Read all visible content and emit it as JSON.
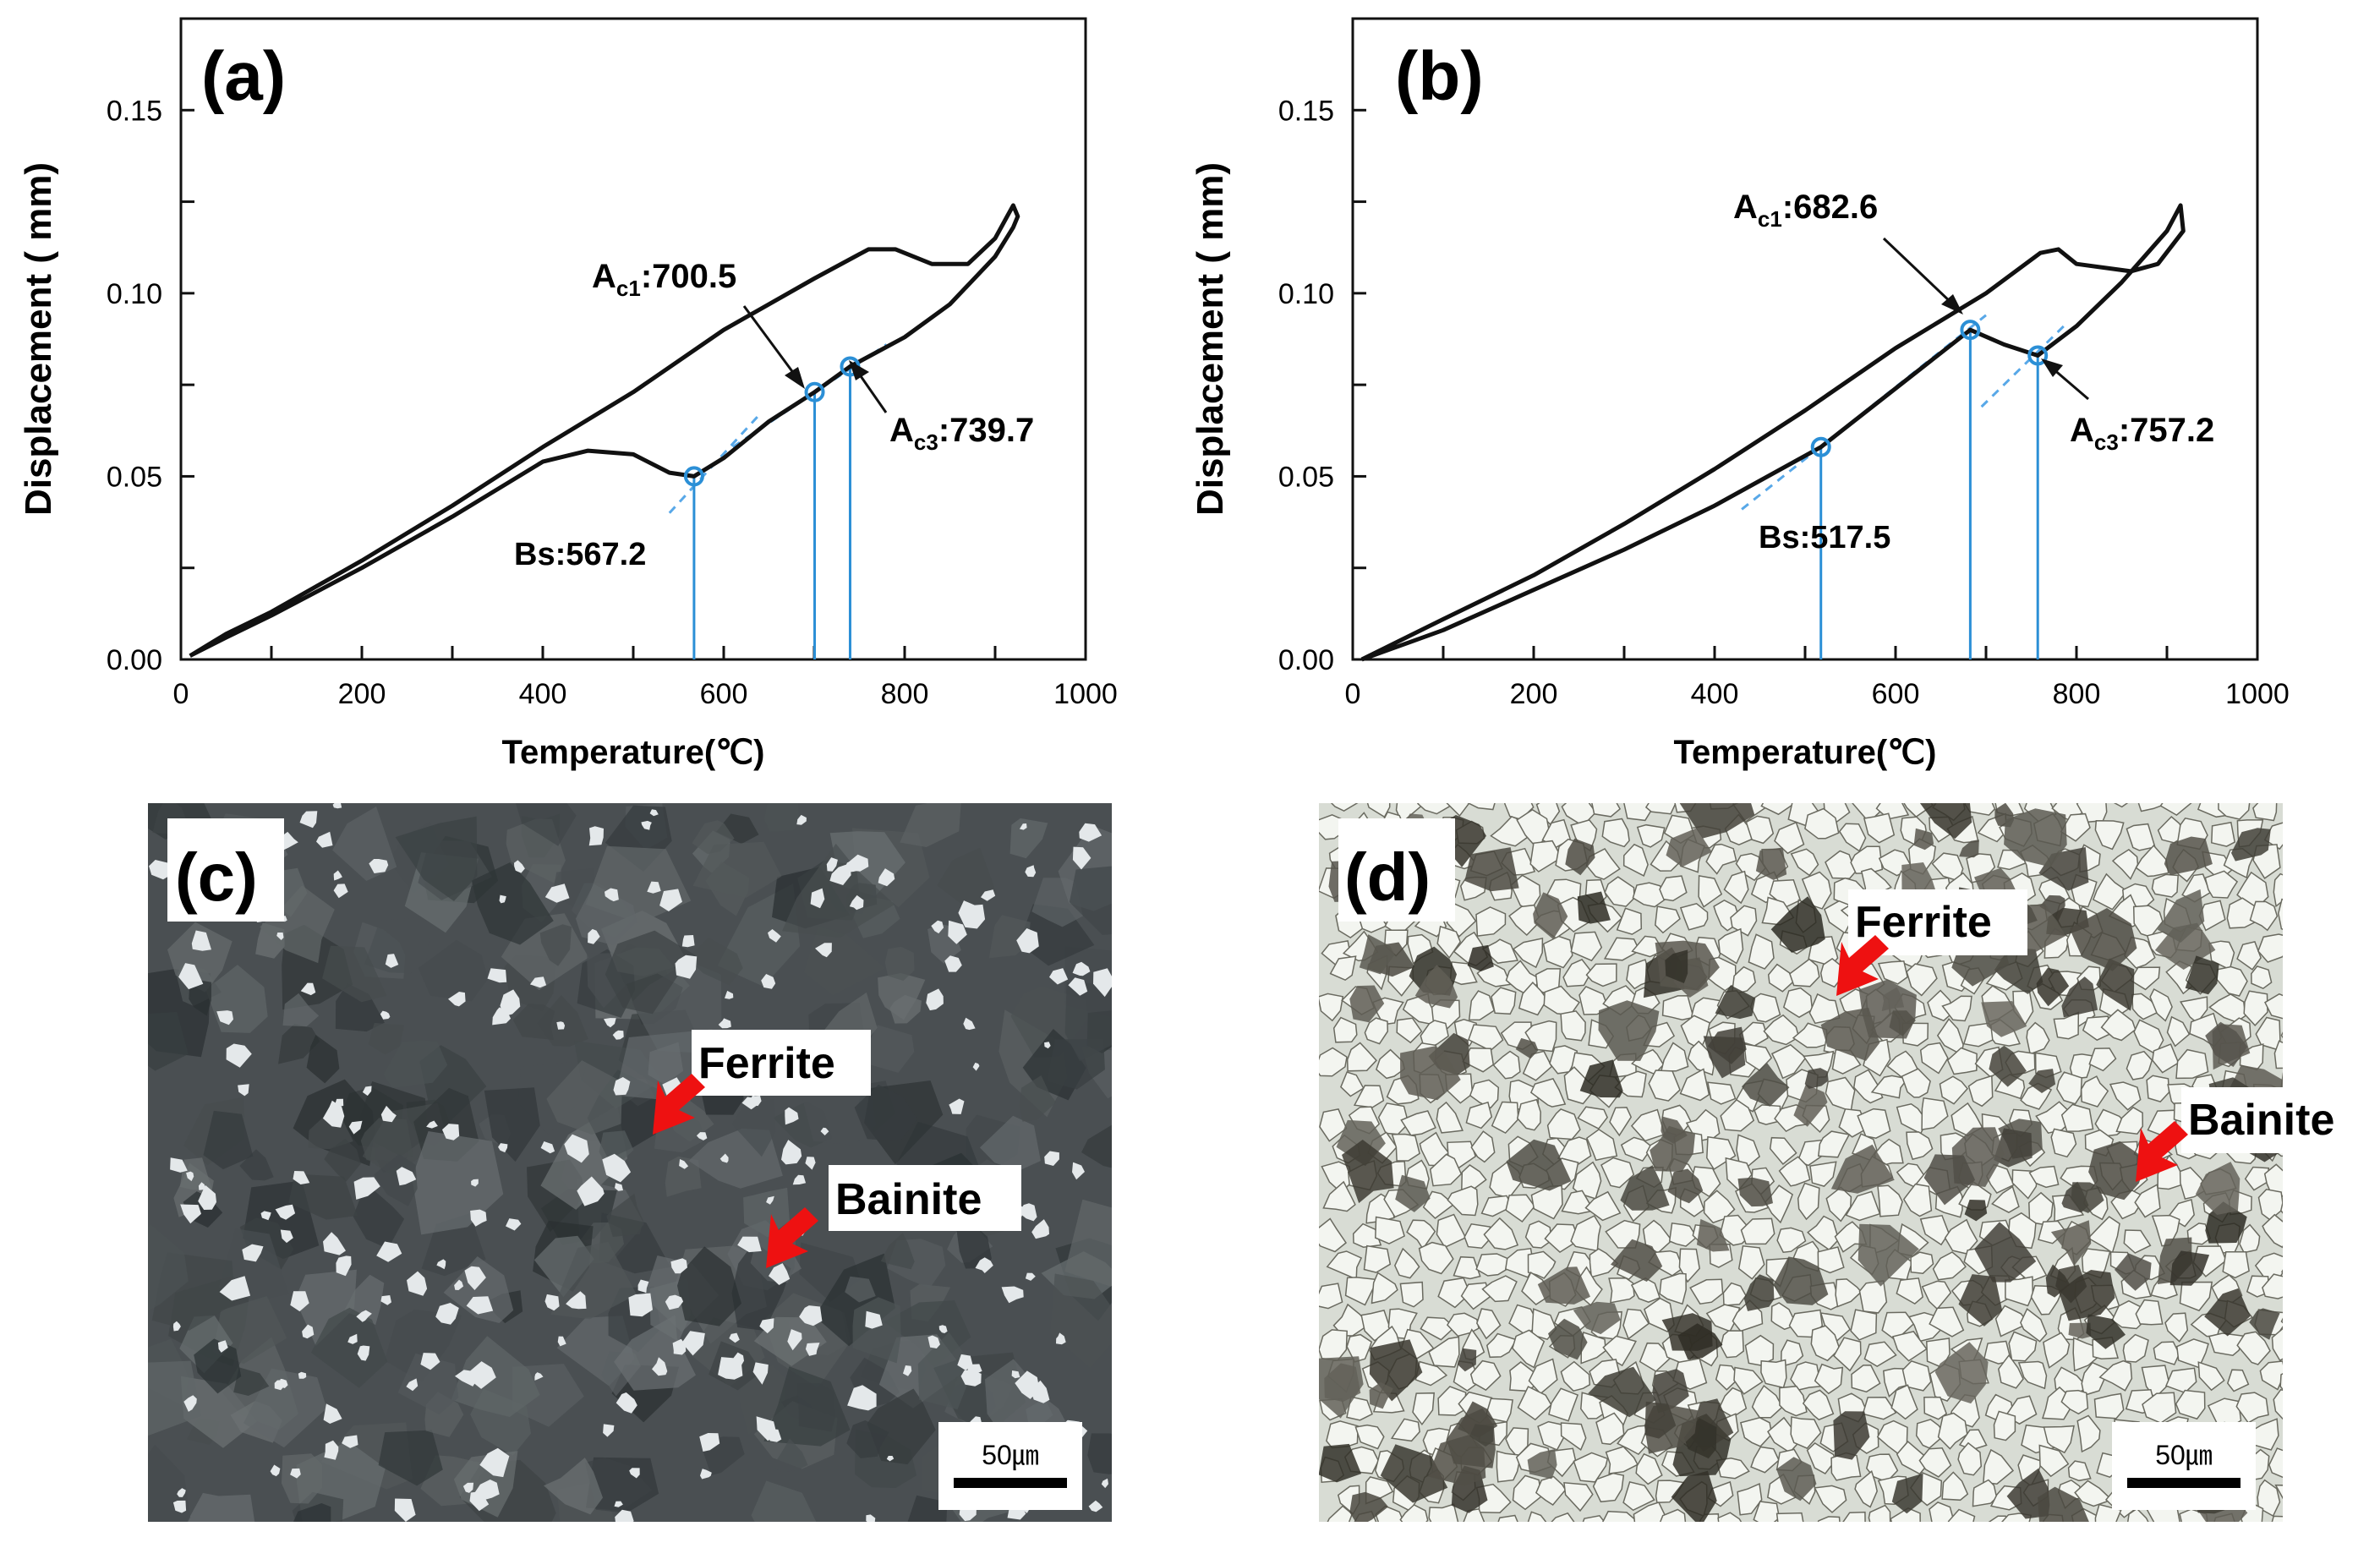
{
  "chart_data": [
    {
      "panel": "(a)",
      "type": "line",
      "xlabel": "Temperature(℃)",
      "ylabel": "Displacement ( mm)",
      "xlim": [
        0,
        1000
      ],
      "ylim": [
        0.0,
        0.175
      ],
      "xticks": [
        "0",
        "200",
        "400",
        "600",
        "800",
        "1000"
      ],
      "yticks": [
        "0.00",
        "0.05",
        "0.10",
        "0.15"
      ],
      "grid": false,
      "series": [
        {
          "values": [
            [
              10,
              0.001
            ],
            [
              50,
              0.006
            ],
            [
              100,
              0.012
            ],
            [
              200,
              0.025
            ],
            [
              300,
              0.039
            ],
            [
              400,
              0.054
            ],
            [
              450,
              0.057
            ],
            [
              500,
              0.056
            ],
            [
              540,
              0.051
            ],
            [
              567.2,
              0.05
            ],
            [
              600,
              0.055
            ],
            [
              650,
              0.065
            ],
            [
              700.5,
              0.073
            ],
            [
              739.7,
              0.08
            ],
            [
              800,
              0.088
            ],
            [
              850,
              0.097
            ],
            [
              900,
              0.11
            ],
            [
              920,
              0.118
            ],
            [
              925,
              0.121
            ],
            [
              920,
              0.124
            ],
            [
              900,
              0.115
            ],
            [
              870,
              0.108
            ],
            [
              830,
              0.108
            ],
            [
              790,
              0.112
            ],
            [
              760,
              0.112
            ],
            [
              700,
              0.104
            ],
            [
              600,
              0.09
            ],
            [
              500,
              0.073
            ],
            [
              400,
              0.058
            ],
            [
              300,
              0.042
            ],
            [
              200,
              0.027
            ],
            [
              100,
              0.013
            ],
            [
              50,
              0.007
            ],
            [
              10,
              0.001
            ]
          ]
        }
      ],
      "markers": [
        {
          "label": "Bs:567.2",
          "x": 567.2,
          "y": 0.05
        },
        {
          "label": "A",
          "sub": "c1",
          "value": ":700.5",
          "x": 700.5,
          "y": 0.073
        },
        {
          "label": "A",
          "sub": "c3",
          "value": ":739.7",
          "x": 739.7,
          "y": 0.08
        }
      ],
      "tangents": [
        {
          "from": [
            540,
            0.04
          ],
          "to": [
            640,
            0.067
          ]
        },
        {
          "from": [
            610,
            0.058
          ],
          "to": [
            780,
            0.086
          ]
        }
      ]
    },
    {
      "panel": "(b)",
      "type": "line",
      "xlabel": "Temperature(℃)",
      "ylabel": "Displacement ( mm)",
      "xlim": [
        0,
        1000
      ],
      "ylim": [
        0.0,
        0.175
      ],
      "xticks": [
        "0",
        "200",
        "400",
        "600",
        "800",
        "1000"
      ],
      "yticks": [
        "0.00",
        "0.05",
        "0.10",
        "0.15"
      ],
      "grid": false,
      "series": [
        {
          "values": [
            [
              10,
              0.0
            ],
            [
              100,
              0.008
            ],
            [
              200,
              0.019
            ],
            [
              300,
              0.03
            ],
            [
              400,
              0.042
            ],
            [
              517.5,
              0.058
            ],
            [
              600,
              0.074
            ],
            [
              682.6,
              0.09
            ],
            [
              720,
              0.086
            ],
            [
              757.2,
              0.083
            ],
            [
              800,
              0.091
            ],
            [
              850,
              0.103
            ],
            [
              900,
              0.117
            ],
            [
              915,
              0.124
            ],
            [
              918,
              0.117
            ],
            [
              890,
              0.108
            ],
            [
              860,
              0.106
            ],
            [
              800,
              0.108
            ],
            [
              780,
              0.112
            ],
            [
              760,
              0.111
            ],
            [
              700,
              0.1
            ],
            [
              600,
              0.085
            ],
            [
              500,
              0.068
            ],
            [
              400,
              0.052
            ],
            [
              300,
              0.037
            ],
            [
              200,
              0.023
            ],
            [
              100,
              0.011
            ],
            [
              10,
              0.0
            ]
          ]
        }
      ],
      "markers": [
        {
          "label": "Bs:517.5",
          "x": 517.5,
          "y": 0.058
        },
        {
          "label": "A",
          "sub": "c1",
          "value": ":682.6",
          "x": 682.6,
          "y": 0.09
        },
        {
          "label": "A",
          "sub": "c3",
          "value": ":757.2",
          "x": 757.2,
          "y": 0.083
        }
      ],
      "tangents": [
        {
          "from": [
            430,
            0.041
          ],
          "to": [
            700,
            0.094
          ]
        },
        {
          "from": [
            695,
            0.069
          ],
          "to": [
            790,
            0.092
          ]
        }
      ]
    }
  ],
  "micrographs": [
    {
      "panel": "(c)",
      "ferrite_label": "Ferrite",
      "bainite_label": "Bainite",
      "scale_bar": "50㎛"
    },
    {
      "panel": "(d)",
      "ferrite_label": "Ferrite",
      "bainite_label": "Bainite",
      "scale_bar": "50㎛"
    }
  ],
  "colors": {
    "curve": "#111111",
    "marker": "#2b8fd6",
    "tangent": "#58a8e8",
    "arrow_red": "#ee1111",
    "micrograph_c_bg": "#4a4f52",
    "micrograph_d_bg": "#d8dcd4"
  }
}
